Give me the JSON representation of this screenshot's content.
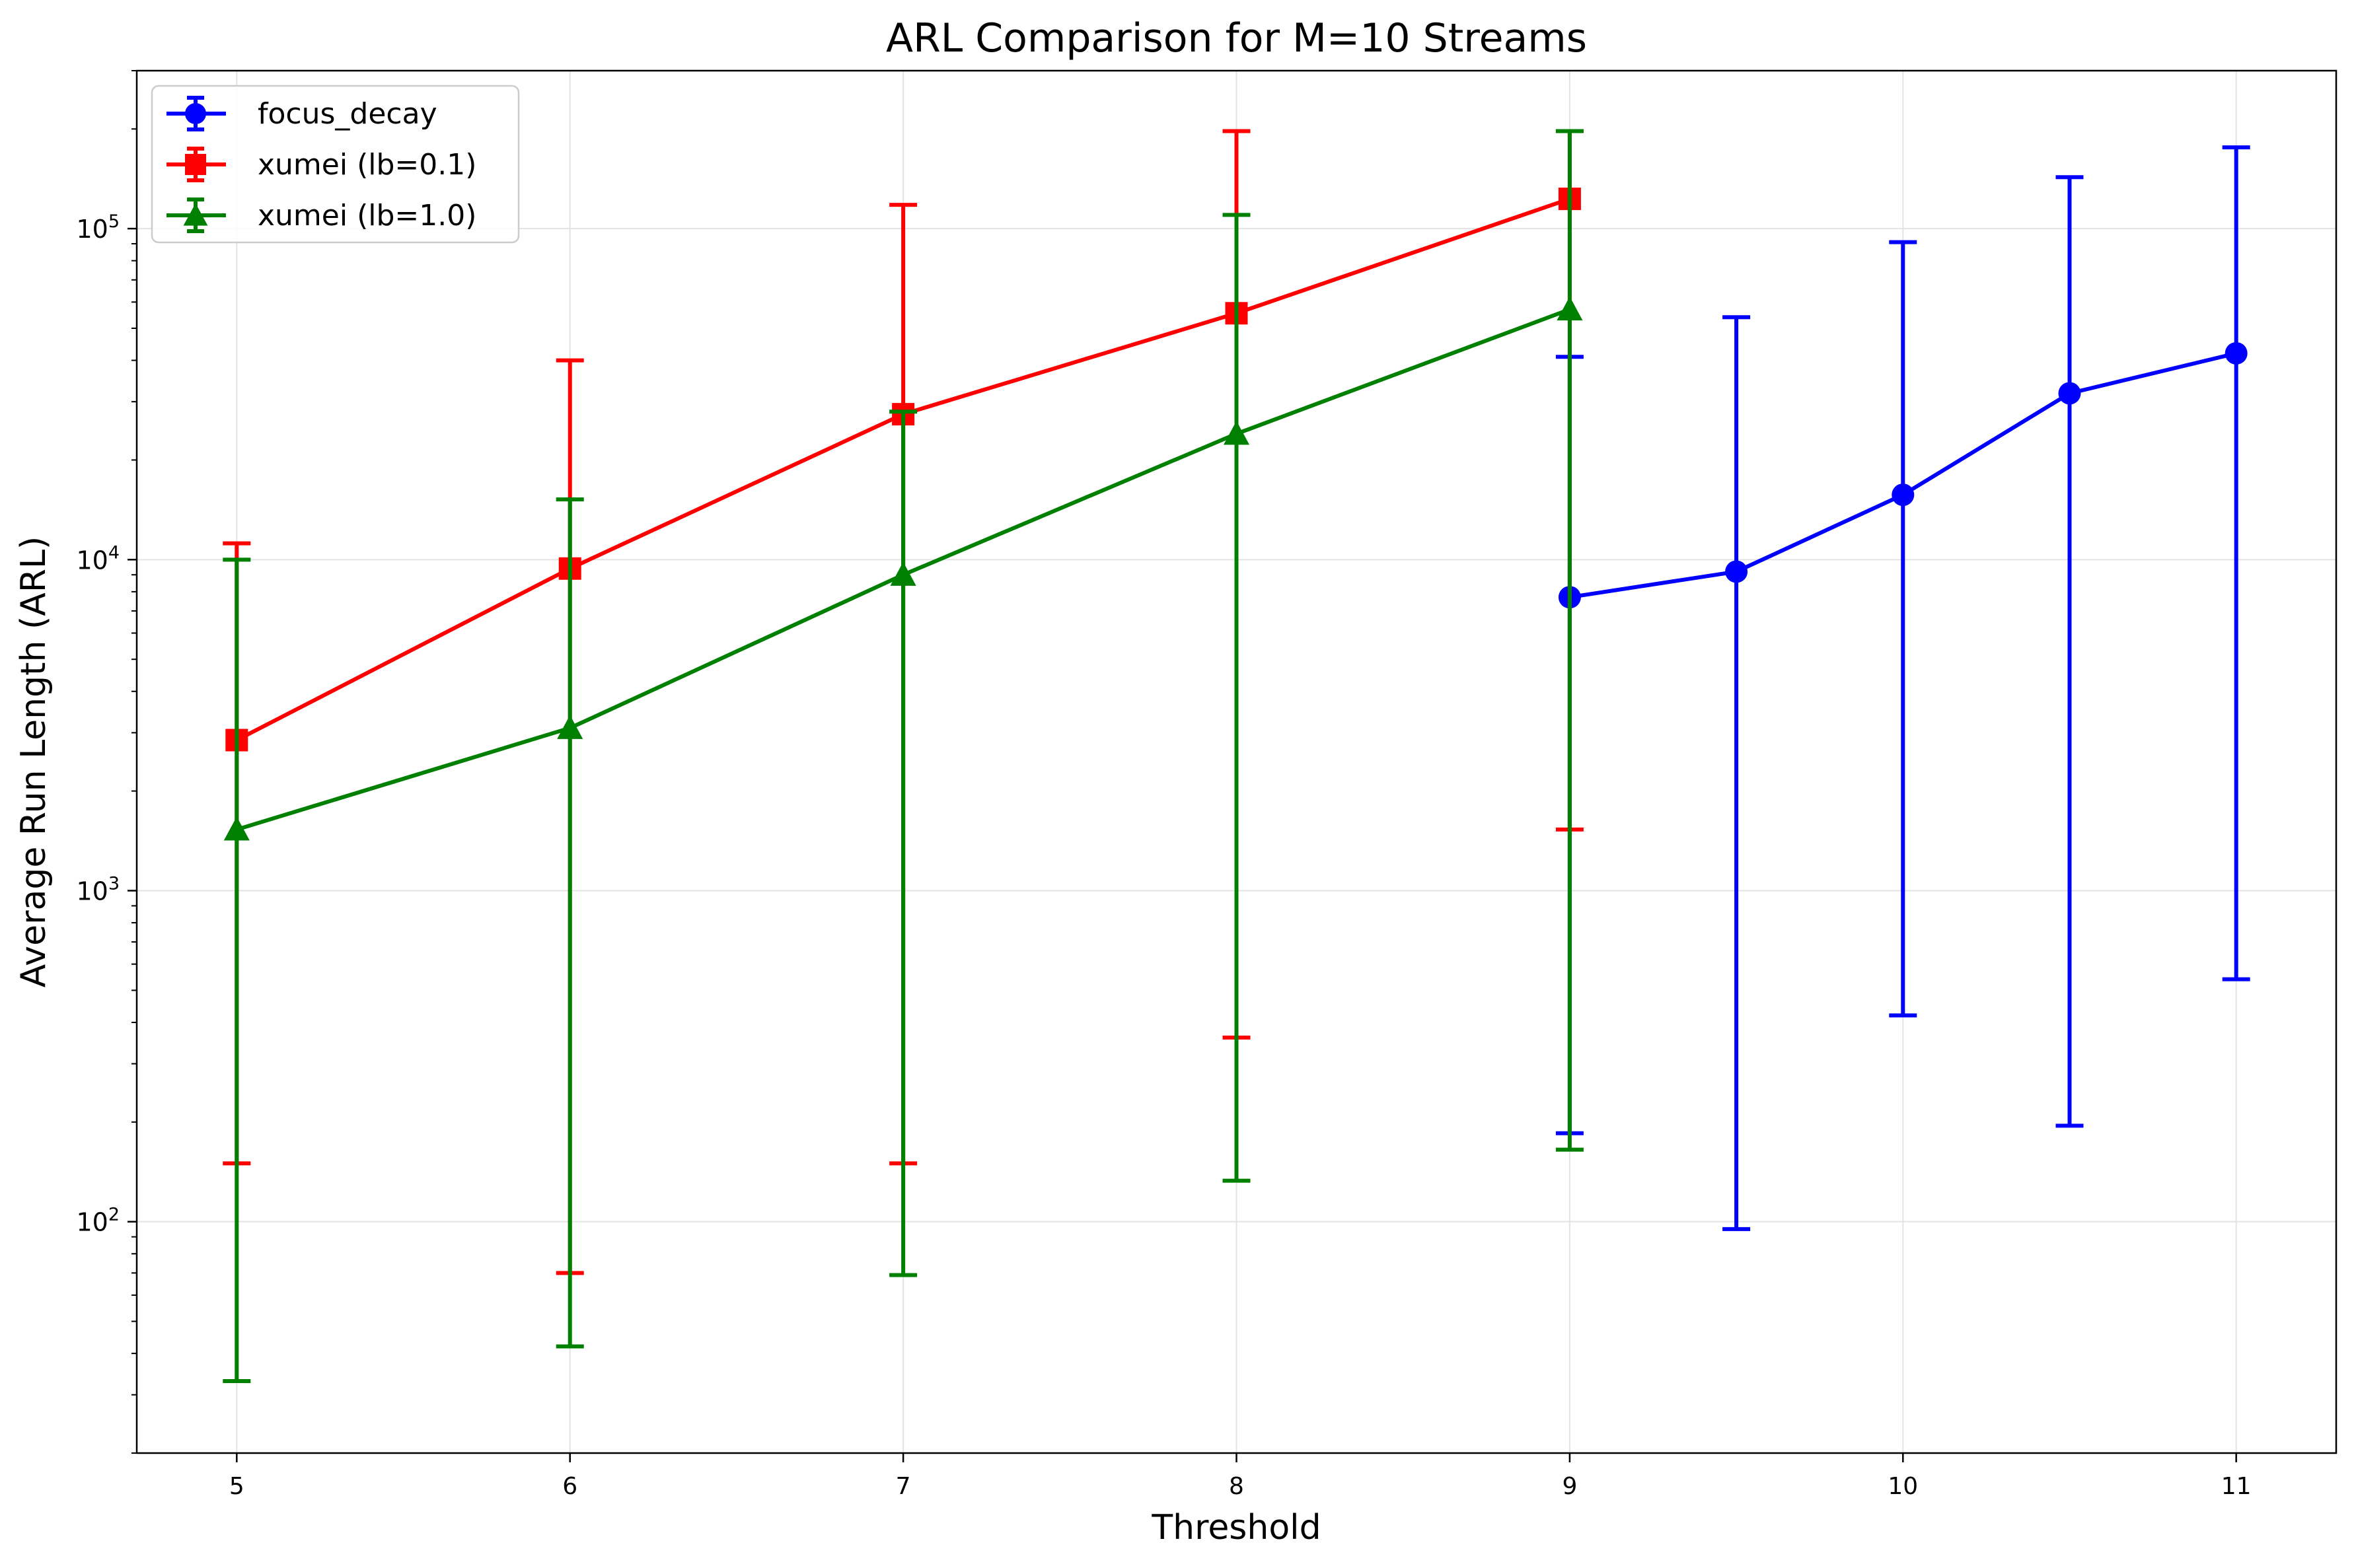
{
  "chart_data": {
    "type": "line",
    "title": "ARL Comparison for M=10 Streams",
    "xlabel": "Threshold",
    "ylabel": "Average Run Length (ARL)",
    "xlim": [
      4.7,
      11.3
    ],
    "ylim": [
      20,
      300000
    ],
    "yscale": "log",
    "grid": true,
    "legend_position": "top-left",
    "x_ticks": [
      5,
      6,
      7,
      8,
      9,
      10,
      11
    ],
    "x_tick_labels": [
      "5",
      "6",
      "7",
      "8",
      "9",
      "10",
      "11"
    ],
    "y_ticks": [
      100,
      1000,
      10000,
      100000
    ],
    "y_tick_labels": [
      {
        "base": "10",
        "exp": "2"
      },
      {
        "base": "10",
        "exp": "3"
      },
      {
        "base": "10",
        "exp": "4"
      },
      {
        "base": "10",
        "exp": "5"
      }
    ],
    "series": [
      {
        "name": "focus_decay",
        "color": "#0000ff",
        "marker": "circle",
        "x": [
          9,
          9.5,
          10,
          10.5,
          11
        ],
        "y": [
          7700,
          9200,
          15700,
          31800,
          42000
        ],
        "err_low": [
          185,
          95,
          420,
          195,
          540
        ],
        "err_high": [
          41000,
          54000,
          91000,
          143000,
          176000
        ]
      },
      {
        "name": "xumei (lb=0.1)",
        "color": "#ff0000",
        "marker": "square",
        "x": [
          5,
          6,
          7,
          8,
          9
        ],
        "y": [
          2850,
          9400,
          27500,
          55500,
          123000
        ],
        "err_low": [
          150,
          70,
          150,
          360,
          1530
        ],
        "err_high": [
          11200,
          40000,
          118000,
          197000,
          197000
        ]
      },
      {
        "name": "xumei (lb=1.0)",
        "color": "#008000",
        "marker": "triangle",
        "x": [
          5,
          6,
          7,
          8,
          9
        ],
        "y": [
          1530,
          3100,
          9000,
          24000,
          57000
        ],
        "err_low": [
          33,
          42,
          69,
          133,
          165
        ],
        "err_high": [
          10000,
          15200,
          28000,
          110000,
          197000
        ]
      }
    ]
  }
}
